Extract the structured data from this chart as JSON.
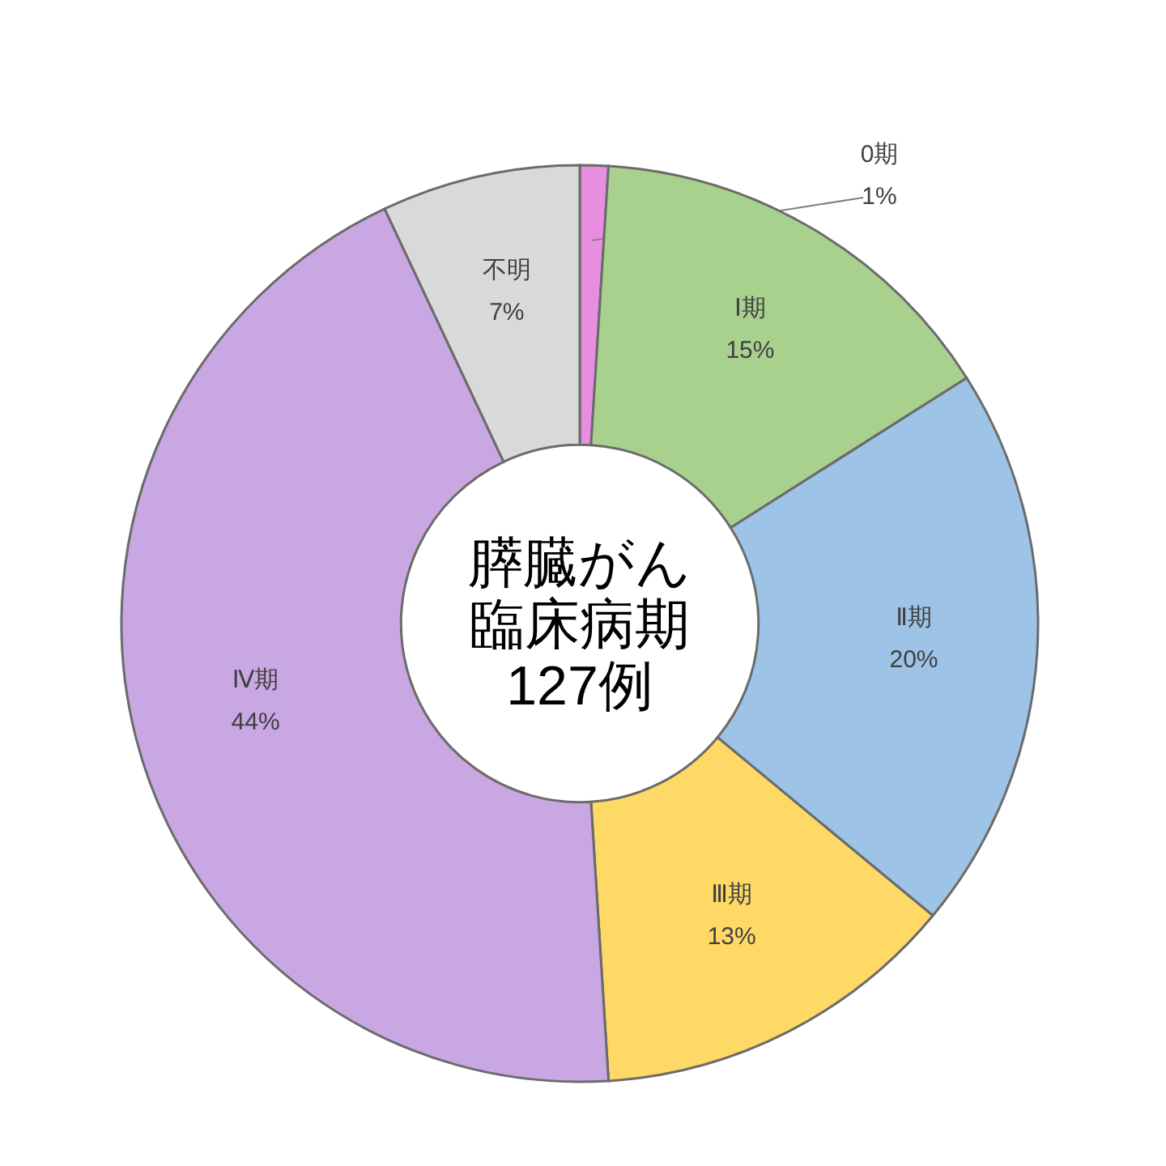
{
  "chart_data": {
    "type": "donut",
    "title": "膵臓がん臨床病期127例",
    "categories": [
      "0期",
      "Ⅰ期",
      "Ⅱ期",
      "Ⅲ期",
      "Ⅳ期",
      "不明"
    ],
    "values": [
      1,
      15,
      20,
      13,
      44,
      7
    ],
    "value_labels": [
      "1%",
      "15%",
      "20%",
      "13%",
      "44%",
      "7%"
    ],
    "colors": [
      "#e88ee0",
      "#a9d18e",
      "#9dc3e6",
      "#ffd966",
      "#c9a7e3",
      "#d9d9d9"
    ]
  }
}
